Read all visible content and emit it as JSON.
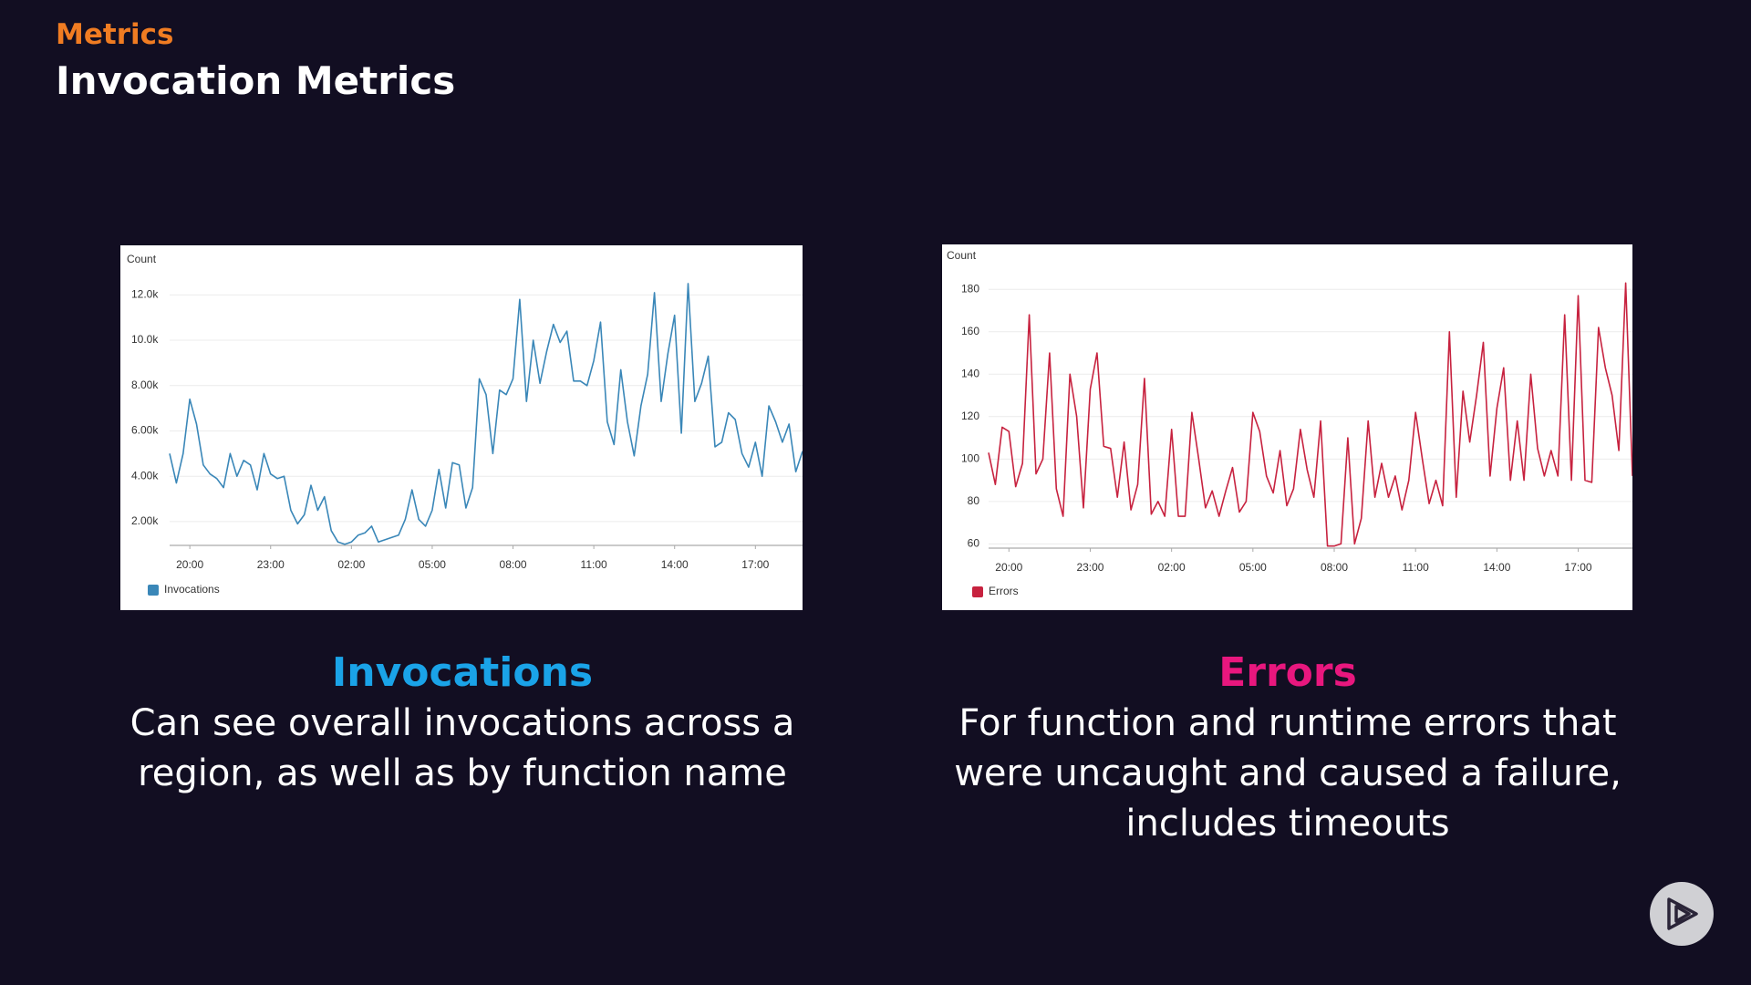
{
  "header": {
    "section": "Metrics",
    "title": "Invocation Metrics"
  },
  "chart_data": [
    {
      "type": "line",
      "y_label": "Count",
      "grid": true,
      "xlim": [
        0,
        94
      ],
      "xticks": [
        {
          "value": 3,
          "label": "20:00"
        },
        {
          "value": 15,
          "label": "23:00"
        },
        {
          "value": 27,
          "label": "02:00"
        },
        {
          "value": 39,
          "label": "05:00"
        },
        {
          "value": 51,
          "label": "08:00"
        },
        {
          "value": 63,
          "label": "11:00"
        },
        {
          "value": 75,
          "label": "14:00"
        },
        {
          "value": 87,
          "label": "17:00"
        }
      ],
      "ylim": [
        950,
        13100
      ],
      "yticks": [
        {
          "value": 2000,
          "label": "2.00k"
        },
        {
          "value": 4000,
          "label": "4.00k"
        },
        {
          "value": 6000,
          "label": "6.00k"
        },
        {
          "value": 8000,
          "label": "8.00k"
        },
        {
          "value": 10000,
          "label": "10.0k"
        },
        {
          "value": 12000,
          "label": "12.0k"
        }
      ],
      "series": [
        {
          "name": "Invocations",
          "color": "#3a87b8",
          "values": [
            5000,
            3700,
            5000,
            7400,
            6300,
            4500,
            4100,
            3900,
            3500,
            5000,
            4000,
            4700,
            4500,
            3400,
            5000,
            4100,
            3900,
            4000,
            2500,
            1900,
            2300,
            3600,
            2500,
            3100,
            1600,
            1100,
            1000,
            1100,
            1400,
            1500,
            1800,
            1100,
            1200,
            1300,
            1400,
            2100,
            3400,
            2100,
            1800,
            2500,
            4300,
            2600,
            4600,
            4500,
            2600,
            3500,
            8300,
            7600,
            5000,
            7800,
            7600,
            8300,
            11800,
            7300,
            10000,
            8100,
            9500,
            10700,
            9900,
            10400,
            8200,
            8200,
            8000,
            9100,
            10800,
            6400,
            5400,
            8700,
            6400,
            4900,
            7100,
            8500,
            12100,
            7300,
            9400,
            11100,
            5900,
            12500,
            7300,
            8100,
            9300,
            5300,
            5500,
            6800,
            6500,
            5000,
            4400,
            5500,
            4000,
            7100,
            6400,
            5500,
            6300,
            4200,
            5100
          ]
        }
      ]
    },
    {
      "type": "line",
      "y_label": "Count",
      "grid": true,
      "xlim": [
        0,
        95
      ],
      "xticks": [
        {
          "value": 3,
          "label": "20:00"
        },
        {
          "value": 15,
          "label": "23:00"
        },
        {
          "value": 27,
          "label": "02:00"
        },
        {
          "value": 39,
          "label": "05:00"
        },
        {
          "value": 51,
          "label": "08:00"
        },
        {
          "value": 63,
          "label": "11:00"
        },
        {
          "value": 75,
          "label": "14:00"
        },
        {
          "value": 87,
          "label": "17:00"
        }
      ],
      "ylim": [
        58,
        190
      ],
      "yticks": [
        60,
        80,
        100,
        120,
        140,
        160,
        180
      ],
      "series": [
        {
          "name": "Errors",
          "color": "#c7223f",
          "values": [
            103,
            88,
            115,
            113,
            87,
            98,
            168,
            93,
            100,
            150,
            86,
            73,
            140,
            120,
            77,
            133,
            150,
            106,
            105,
            82,
            108,
            76,
            88,
            138,
            74,
            80,
            73,
            114,
            73,
            73,
            122,
            100,
            77,
            85,
            73,
            85,
            96,
            75,
            80,
            122,
            113,
            92,
            84,
            104,
            78,
            86,
            114,
            95,
            82,
            118,
            59,
            59,
            60,
            110,
            60,
            72,
            118,
            82,
            98,
            82,
            92,
            76,
            90,
            122,
            100,
            79,
            90,
            78,
            160,
            82,
            132,
            108,
            130,
            155,
            92,
            124,
            143,
            90,
            118,
            90,
            140,
            105,
            92,
            104,
            92,
            168,
            90,
            177,
            90,
            89,
            162,
            143,
            130,
            104,
            183,
            92
          ]
        }
      ]
    }
  ],
  "captions": [
    {
      "title": "Invocations",
      "lines": [
        "Can see overall invocations across a",
        "region, as well as by function name"
      ]
    },
    {
      "title": "Errors",
      "lines": [
        "For function and runtime errors that",
        "were uncaught and caused a failure,",
        "includes timeouts"
      ]
    }
  ]
}
